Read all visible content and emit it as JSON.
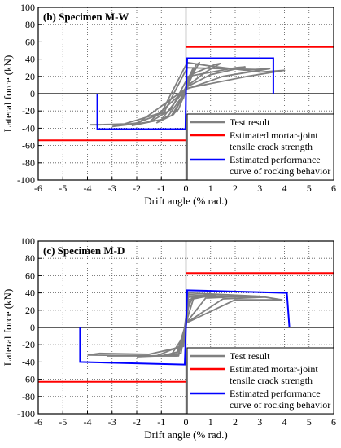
{
  "figure": {
    "panels": [
      {
        "panel_label": "(b) Specimen M-W",
        "xlabel": "Drift angle (% rad.)",
        "ylabel": "Lateral force (kN)",
        "xticks": [
          "-6",
          "-5",
          "-4",
          "-3",
          "-2",
          "-1",
          "0",
          "1",
          "2",
          "3",
          "4",
          "5",
          "6"
        ],
        "yticks": [
          "100",
          "80",
          "60",
          "40",
          "20",
          "0",
          "-20",
          "-40",
          "-60",
          "-80",
          "-100"
        ],
        "legend": [
          {
            "label": "Test result",
            "color": "#808080"
          },
          {
            "label": "Estimated mortar-joint tensile crack strength",
            "color": "#ff0000"
          },
          {
            "label": "Estimated performance curve of rocking behavior",
            "color": "#0000ff"
          }
        ]
      },
      {
        "panel_label": "(c) Specimen M-D",
        "xlabel": "Drift angle (% rad.)",
        "ylabel": "Lateral force (kN)",
        "xticks": [
          "-6",
          "-5",
          "-4",
          "-3",
          "-2",
          "-1",
          "0",
          "1",
          "2",
          "3",
          "4",
          "5",
          "6"
        ],
        "yticks": [
          "100",
          "80",
          "60",
          "40",
          "20",
          "0",
          "-20",
          "-40",
          "-60",
          "-80",
          "-100"
        ],
        "legend": [
          {
            "label": "Test result",
            "color": "#808080"
          },
          {
            "label": "Estimated mortar-joint tensile crack strength",
            "color": "#ff0000"
          },
          {
            "label": "Estimated performance curve of rocking behavior",
            "color": "#0000ff"
          }
        ]
      }
    ]
  },
  "chart_data": [
    {
      "type": "line",
      "title": "(b) Specimen M-W",
      "xlabel": "Drift angle (% rad.)",
      "ylabel": "Lateral force (kN)",
      "xlim": [
        -6,
        6
      ],
      "ylim": [
        -100,
        100
      ],
      "xtick_step": 1,
      "ytick_step": 20,
      "grid": "dotted",
      "legend_position": "bottom-right",
      "series": [
        {
          "name": "Estimated mortar-joint tensile crack strength",
          "color": "#ff0000",
          "segments": [
            [
              [
                0,
                54
              ],
              [
                6,
                54
              ]
            ],
            [
              [
                -6,
                -54
              ],
              [
                0,
                -54
              ]
            ]
          ]
        },
        {
          "name": "Estimated performance curve of rocking behavior",
          "color": "#0000ff",
          "segments": [
            [
              [
                -3.6,
                0
              ],
              [
                -3.6,
                -41
              ],
              [
                -0.02,
                -41
              ],
              [
                0,
                0
              ],
              [
                0.05,
                41
              ],
              [
                3.55,
                41
              ],
              [
                3.55,
                0
              ]
            ]
          ]
        },
        {
          "name": "Test result",
          "color": "#808080",
          "loops": [
            [
              [
                -0.25,
                -12
              ],
              [
                -0.1,
                0
              ],
              [
                0.1,
                15
              ],
              [
                0.25,
                26
              ],
              [
                0.3,
                30
              ],
              [
                0.1,
                18
              ],
              [
                -0.1,
                -5
              ],
              [
                -0.25,
                -12
              ]
            ],
            [
              [
                -0.6,
                -26
              ],
              [
                -0.3,
                -12
              ],
              [
                0,
                5
              ],
              [
                0.4,
                33
              ],
              [
                0.55,
                36
              ],
              [
                0.3,
                24
              ],
              [
                0,
                4
              ],
              [
                -0.3,
                -18
              ],
              [
                -0.6,
                -26
              ]
            ],
            [
              [
                -1.2,
                -34
              ],
              [
                -0.7,
                -25
              ],
              [
                -0.2,
                -5
              ],
              [
                0.2,
                22
              ],
              [
                1.2,
                34
              ],
              [
                1.4,
                35
              ],
              [
                0.8,
                25
              ],
              [
                0.1,
                10
              ],
              [
                -0.5,
                -24
              ],
              [
                -1.2,
                -34
              ]
            ],
            [
              [
                -2.2,
                -37
              ],
              [
                -1.4,
                -32
              ],
              [
                -0.6,
                -18
              ],
              [
                0.1,
                20
              ],
              [
                2.0,
                30
              ],
              [
                2.4,
                31
              ],
              [
                1.0,
                22
              ],
              [
                0.05,
                8
              ],
              [
                -1.0,
                -30
              ],
              [
                -2.2,
                -37
              ]
            ],
            [
              [
                -3.0,
                -38
              ],
              [
                -2.0,
                -34
              ],
              [
                -0.9,
                -22
              ],
              [
                0.05,
                30
              ],
              [
                2.8,
                28
              ],
              [
                3.4,
                29
              ],
              [
                1.5,
                20
              ],
              [
                0.0,
                5
              ],
              [
                -1.5,
                -33
              ],
              [
                -3.0,
                -38
              ]
            ],
            [
              [
                -3.9,
                -36
              ],
              [
                -3.5,
                -36
              ],
              [
                -2.5,
                -35
              ],
              [
                -1.0,
                -22
              ],
              [
                0.05,
                36
              ],
              [
                1.0,
                32
              ],
              [
                3.0,
                25
              ],
              [
                4.0,
                27
              ],
              [
                2.5,
                20
              ],
              [
                0.0,
                6
              ],
              [
                -2.0,
                -35
              ],
              [
                -3.9,
                -36
              ]
            ]
          ]
        }
      ]
    },
    {
      "type": "line",
      "title": "(c) Specimen M-D",
      "xlabel": "Drift angle (% rad.)",
      "ylabel": "Lateral force (kN)",
      "xlim": [
        -6,
        6
      ],
      "ylim": [
        -100,
        100
      ],
      "xtick_step": 1,
      "ytick_step": 20,
      "grid": "dotted",
      "legend_position": "bottom-right",
      "series": [
        {
          "name": "Estimated mortar-joint tensile crack strength",
          "color": "#ff0000",
          "segments": [
            [
              [
                0,
                63
              ],
              [
                6,
                63
              ]
            ],
            [
              [
                -6,
                -63
              ],
              [
                0,
                -63
              ]
            ]
          ]
        },
        {
          "name": "Estimated performance curve of rocking behavior",
          "color": "#0000ff",
          "segments": [
            [
              [
                -4.3,
                0
              ],
              [
                -4.3,
                -40
              ],
              [
                -0.05,
                -43
              ],
              [
                0,
                0
              ],
              [
                0.05,
                43
              ],
              [
                4.1,
                40
              ],
              [
                4.2,
                0
              ]
            ]
          ]
        },
        {
          "name": "Test result",
          "color": "#808080",
          "loops": [
            [
              [
                -0.15,
                -20
              ],
              [
                0.0,
                0
              ],
              [
                0.1,
                25
              ],
              [
                0.15,
                30
              ],
              [
                0.05,
                15
              ],
              [
                -0.05,
                -5
              ],
              [
                -0.15,
                -20
              ]
            ],
            [
              [
                -0.3,
                -28
              ],
              [
                -0.1,
                -15
              ],
              [
                0.05,
                20
              ],
              [
                0.25,
                34
              ],
              [
                0.3,
                36
              ],
              [
                0.1,
                25
              ],
              [
                -0.05,
                -10
              ],
              [
                -0.3,
                -28
              ]
            ],
            [
              [
                -1.0,
                -33
              ],
              [
                -0.3,
                -28
              ],
              [
                -0.05,
                0
              ],
              [
                0.1,
                32
              ],
              [
                0.8,
                38
              ],
              [
                1.2,
                38
              ],
              [
                0.3,
                33
              ],
              [
                0.0,
                5
              ],
              [
                -0.2,
                -30
              ],
              [
                -1.0,
                -33
              ]
            ],
            [
              [
                -2.0,
                -34
              ],
              [
                -0.6,
                -32
              ],
              [
                -0.1,
                -10
              ],
              [
                0.1,
                35
              ],
              [
                1.5,
                36
              ],
              [
                2.4,
                36
              ],
              [
                0.8,
                34
              ],
              [
                0.0,
                5
              ],
              [
                -0.3,
                -32
              ],
              [
                -2.0,
                -34
              ]
            ],
            [
              [
                -3.2,
                -33
              ],
              [
                -1.2,
                -33
              ],
              [
                -0.1,
                -20
              ],
              [
                0.1,
                38
              ],
              [
                2.5,
                35
              ],
              [
                3.2,
                35
              ],
              [
                1.5,
                33
              ],
              [
                0.0,
                5
              ],
              [
                -0.3,
                -33
              ],
              [
                -3.2,
                -33
              ]
            ],
            [
              [
                -4.0,
                -32
              ],
              [
                -3.5,
                -30
              ],
              [
                -1.5,
                -31
              ],
              [
                -0.1,
                -22
              ],
              [
                0.1,
                40
              ],
              [
                3.0,
                36
              ],
              [
                3.9,
                32
              ],
              [
                2.0,
                32
              ],
              [
                0.0,
                5
              ],
              [
                -0.4,
                -33
              ],
              [
                -4.0,
                -32
              ]
            ]
          ]
        }
      ]
    }
  ]
}
